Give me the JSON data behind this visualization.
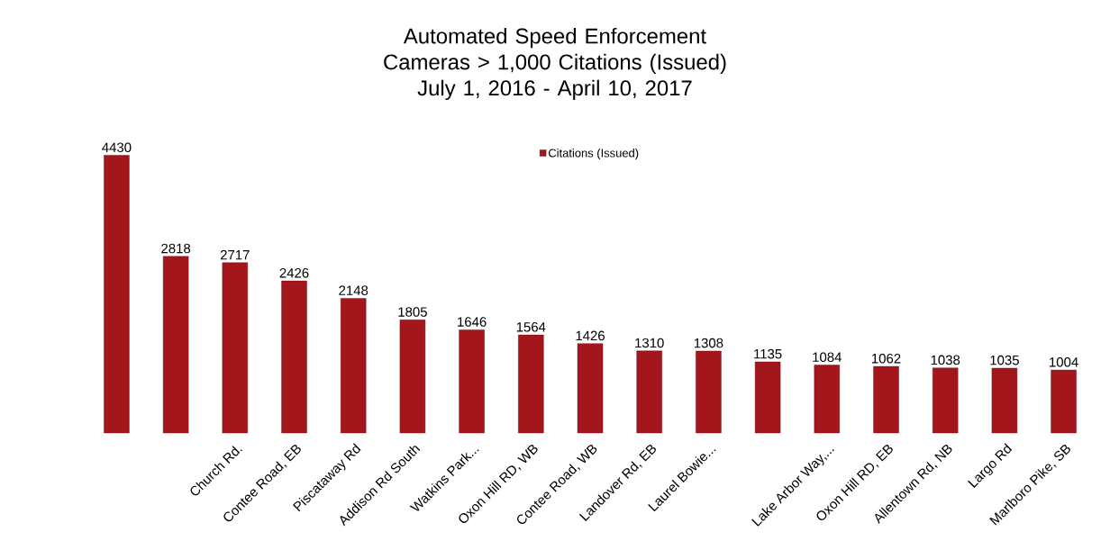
{
  "chart_data": {
    "type": "bar",
    "title": "Automated Speed Enforcement Cameras > 1,000 Citations (Issued)",
    "subtitle": "July 1, 2016 - April 10, 2017",
    "categories": [
      null,
      null,
      "Church Rd.",
      "Contee Road, EB",
      "Piscataway Rd",
      "Addison Rd South",
      "Watkins Park...",
      "Oxon Hill RD, WB",
      "Contee Road, WB",
      "Landover Rd, EB",
      "Laurel Bowie...",
      null,
      "Lake Arbor Way,...",
      "Oxon Hill RD, EB",
      "Allentown Rd, NB",
      "Largo Rd",
      "Marlboro Pike, SB"
    ],
    "series": [
      {
        "name": "Citations (Issued)",
        "color": "#a3161c",
        "values": [
          4430,
          2818,
          2717,
          2426,
          2148,
          1805,
          1646,
          1564,
          1426,
          1310,
          1308,
          1135,
          1084,
          1062,
          1038,
          1035,
          1004
        ]
      }
    ],
    "data_labels": true,
    "legend": "top"
  }
}
